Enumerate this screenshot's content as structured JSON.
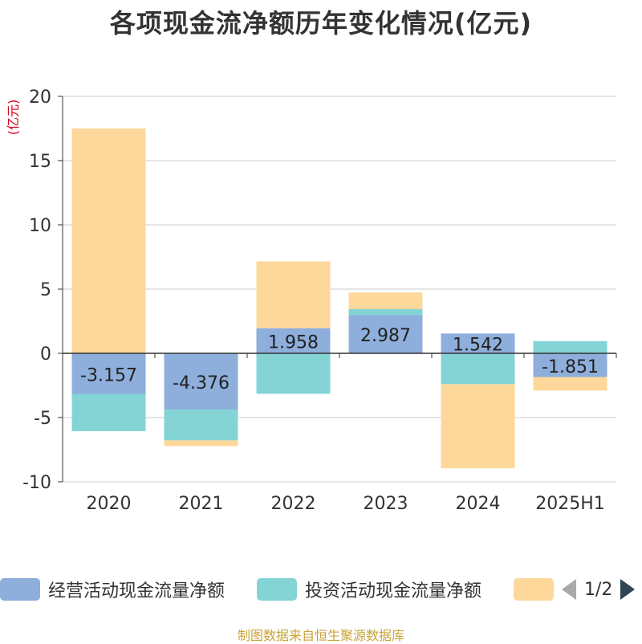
{
  "title": "各项现金流净额历年变化情况(亿元)",
  "source": "制图数据来自恒生聚源数据库",
  "legend": {
    "items": [
      {
        "label": "经营活动现金流量净额",
        "color": "#8eaedb"
      },
      {
        "label": "投资活动现金流量净额",
        "color": "#84d4d6"
      },
      {
        "label": "",
        "color": "#fed89b"
      }
    ],
    "page_indicator": "1/2"
  },
  "chart_data": {
    "type": "bar",
    "stacked": true,
    "ylabel": "(亿元)",
    "ylim": [
      -10,
      20
    ],
    "yticks": [
      20,
      15,
      10,
      5,
      0,
      -5,
      -10
    ],
    "grid": true,
    "legend_position": "bottom",
    "categories": [
      "2020",
      "2021",
      "2022",
      "2023",
      "2024",
      "2025H1"
    ],
    "series": [
      {
        "name": "经营活动现金流量净额",
        "color": "#8eaedb",
        "values": [
          -3.157,
          -4.376,
          1.958,
          2.987,
          1.542,
          -1.851
        ],
        "labels": [
          "-3.157",
          "-4.376",
          "1.958",
          "2.987",
          "1.542",
          "-1.851"
        ]
      },
      {
        "name": "投资活动现金流量净额",
        "color": "#84d4d6",
        "values": [
          -2.9,
          -2.4,
          -3.15,
          0.45,
          -2.4,
          0.95
        ]
      },
      {
        "color": "#fed89b",
        "values": [
          17.5,
          -0.45,
          5.2,
          1.3,
          -6.55,
          -1.05
        ]
      }
    ]
  }
}
